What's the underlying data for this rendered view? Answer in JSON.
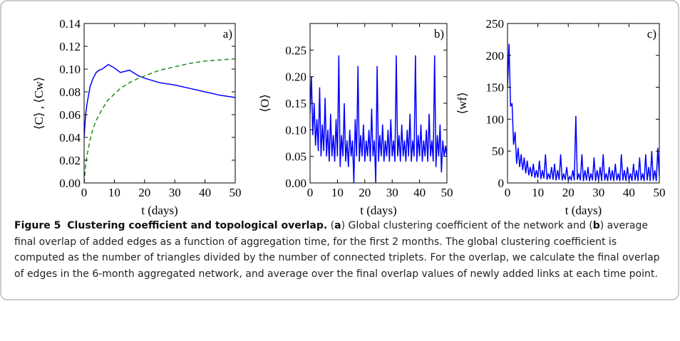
{
  "chart_data": [
    {
      "type": "line",
      "panel_label": "a)",
      "ylabel": "⟨C⟩ , ⟨Cw⟩",
      "xlabel": "t (days)",
      "xlim": [
        0,
        50
      ],
      "xticks": [
        0,
        10,
        20,
        30,
        40,
        50
      ],
      "ylim": [
        0,
        0.14
      ],
      "yticks": [
        {
          "value": 0,
          "label": "0.00"
        },
        {
          "value": 0.02,
          "label": "0.02"
        },
        {
          "value": 0.04,
          "label": "0.04"
        },
        {
          "value": 0.06,
          "label": "0.06"
        },
        {
          "value": 0.08,
          "label": "0.08"
        },
        {
          "value": 0.1,
          "label": "0.10"
        },
        {
          "value": 0.12,
          "label": "0.12"
        },
        {
          "value": 0.14,
          "label": "0.14"
        }
      ],
      "x": [
        0,
        0.5,
        1,
        2,
        3,
        4,
        5,
        6,
        8,
        10,
        12,
        15,
        18,
        20,
        25,
        30,
        35,
        40,
        45,
        50
      ],
      "series": [
        {
          "color": "#0000ff",
          "linestyle": "solid",
          "values": [
            0.04,
            0.06,
            0.07,
            0.085,
            0.092,
            0.097,
            0.099,
            0.1,
            0.104,
            0.101,
            0.097,
            0.099,
            0.094,
            0.092,
            0.088,
            0.086,
            0.083,
            0.08,
            0.077,
            0.075
          ]
        },
        {
          "color": "#228b22",
          "linestyle": "dashed",
          "values": [
            0,
            0.015,
            0.025,
            0.038,
            0.048,
            0.055,
            0.06,
            0.065,
            0.073,
            0.078,
            0.083,
            0.088,
            0.092,
            0.094,
            0.099,
            0.102,
            0.105,
            0.107,
            0.108,
            0.109
          ]
        }
      ]
    },
    {
      "type": "line",
      "panel_label": "b)",
      "ylabel": "⟨O⟩",
      "xlabel": "t (days)",
      "xlim": [
        0,
        50
      ],
      "xticks": [
        0,
        10,
        20,
        30,
        40,
        50
      ],
      "ylim": [
        0,
        0.3
      ],
      "yticks": [
        {
          "value": 0,
          "label": "0.00"
        },
        {
          "value": 0.05,
          "label": "0.05"
        },
        {
          "value": 0.1,
          "label": "0.10"
        },
        {
          "value": 0.15,
          "label": "0.15"
        },
        {
          "value": 0.2,
          "label": "0.20"
        },
        {
          "value": 0.25,
          "label": "0.25"
        }
      ],
      "x": [
        0,
        0.5,
        1,
        1.5,
        2,
        2.5,
        3,
        3.5,
        4,
        4.5,
        5,
        5.5,
        6,
        6.5,
        7,
        7.5,
        8,
        8.5,
        9,
        9.5,
        10,
        10.5,
        11,
        11.5,
        12,
        12.5,
        13,
        13.5,
        14,
        14.5,
        15,
        15.5,
        16,
        16.5,
        17,
        17.5,
        18,
        18.5,
        19,
        19.5,
        20,
        20.5,
        21,
        21.5,
        22,
        22.5,
        23,
        23.5,
        24,
        24.5,
        25,
        25.5,
        26,
        26.5,
        27,
        27.5,
        28,
        28.5,
        29,
        29.5,
        30,
        30.5,
        31,
        31.5,
        32,
        32.5,
        33,
        33.5,
        34,
        34.5,
        35,
        35.5,
        36,
        36.5,
        37,
        37.5,
        38,
        38.5,
        39,
        39.5,
        40,
        40.5,
        41,
        41.5,
        42,
        42.5,
        43,
        43.5,
        44,
        44.5,
        45,
        45.5,
        46,
        46.5,
        47,
        47.5,
        48,
        48.5,
        49,
        49.5,
        50
      ],
      "series": [
        {
          "color": "#0000ff",
          "linestyle": "solid",
          "values": [
            0.13,
            0.2,
            0.09,
            0.15,
            0.07,
            0.12,
            0.06,
            0.18,
            0.05,
            0.11,
            0.06,
            0.16,
            0.05,
            0.1,
            0.04,
            0.13,
            0.05,
            0.09,
            0.04,
            0.12,
            0.05,
            0.24,
            0.03,
            0.09,
            0.05,
            0.15,
            0.04,
            0.08,
            0.03,
            0.1,
            0.05,
            0.08,
            0,
            0.12,
            0.05,
            0.22,
            0.04,
            0.09,
            0.05,
            0.11,
            0.04,
            0.08,
            0.05,
            0.1,
            0.04,
            0.14,
            0.05,
            0.08,
            0,
            0.22,
            0.04,
            0.09,
            0.05,
            0.11,
            0.04,
            0.08,
            0.05,
            0.1,
            0.04,
            0.12,
            0.05,
            0.08,
            0.04,
            0.24,
            0.05,
            0.09,
            0.04,
            0.11,
            0.05,
            0.08,
            0.04,
            0.1,
            0.05,
            0.13,
            0.04,
            0.08,
            0.05,
            0.24,
            0.04,
            0.09,
            0.05,
            0.11,
            0.04,
            0.08,
            0.05,
            0.1,
            0.04,
            0.13,
            0.05,
            0.08,
            0.04,
            0.24,
            0.03,
            0.09,
            0.05,
            0.11,
            0.02,
            0.08,
            0.05,
            0.07,
            0.05
          ]
        }
      ]
    },
    {
      "type": "line",
      "panel_label": "c)",
      "ylabel": "⟨wf⟩",
      "xlabel": "t (days)",
      "xlim": [
        0,
        50
      ],
      "xticks": [
        0,
        10,
        20,
        30,
        40,
        50
      ],
      "ylim": [
        0,
        250
      ],
      "yticks": [
        0,
        50,
        100,
        150,
        200,
        250
      ],
      "x": [
        0,
        0.5,
        1,
        1.5,
        2,
        2.5,
        3,
        3.5,
        4,
        4.5,
        5,
        5.5,
        6,
        6.5,
        7,
        7.5,
        8,
        8.5,
        9,
        9.5,
        10,
        10.5,
        11,
        11.5,
        12,
        12.5,
        13,
        13.5,
        14,
        14.5,
        15,
        15.5,
        16,
        16.5,
        17,
        17.5,
        18,
        18.5,
        19,
        19.5,
        20,
        20.5,
        21,
        21.5,
        22,
        22.5,
        23,
        23.5,
        24,
        24.5,
        25,
        25.5,
        26,
        26.5,
        27,
        27.5,
        28,
        28.5,
        29,
        29.5,
        30,
        30.5,
        31,
        31.5,
        32,
        32.5,
        33,
        33.5,
        34,
        34.5,
        35,
        35.5,
        36,
        36.5,
        37,
        37.5,
        38,
        38.5,
        39,
        39.5,
        40,
        40.5,
        41,
        41.5,
        42,
        42.5,
        43,
        43.5,
        44,
        44.5,
        45,
        45.5,
        46,
        46.5,
        47,
        47.5,
        48,
        48.5,
        49,
        49.5,
        50
      ],
      "series": [
        {
          "color": "#0000ff",
          "linestyle": "solid",
          "values": [
            150,
            218,
            120,
            125,
            60,
            80,
            30,
            55,
            25,
            45,
            20,
            40,
            15,
            35,
            12,
            25,
            10,
            30,
            8,
            20,
            8,
            35,
            6,
            20,
            7,
            45,
            5,
            15,
            6,
            25,
            5,
            30,
            4,
            20,
            5,
            45,
            4,
            15,
            5,
            25,
            4,
            10,
            5,
            20,
            4,
            105,
            5,
            15,
            4,
            45,
            3,
            20,
            4,
            25,
            3,
            15,
            4,
            40,
            3,
            20,
            4,
            25,
            3,
            45,
            4,
            15,
            3,
            25,
            4,
            20,
            3,
            30,
            4,
            15,
            3,
            45,
            4,
            20,
            3,
            25,
            4,
            15,
            3,
            30,
            4,
            20,
            3,
            40,
            4,
            15,
            3,
            45,
            4,
            25,
            3,
            50,
            4,
            20,
            3,
            55,
            10
          ]
        }
      ]
    }
  ],
  "caption": {
    "label": "Figure 5",
    "title": "Clustering coefficient and topological overlap.",
    "segments": [
      "(",
      "a",
      ") Global clustering coefficient of the network and (",
      "b",
      ") average final overlap of added edges as a function of aggregation time, for the first 2 months. The global clustering coefficient is computed as the number of triangles divided by the number of connected triplets. For the overlap, we calculate the final overlap of edges in the 6-month aggregated network, and average over the final overlap values of newly added links at each time point."
    ]
  }
}
